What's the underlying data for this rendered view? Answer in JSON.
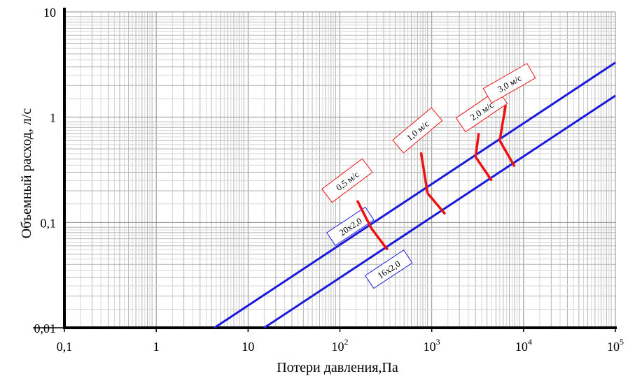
{
  "header": {
    "partial_title": ""
  },
  "chart_data": {
    "type": "line",
    "title": "",
    "xlabel": "Потери давления,Па",
    "ylabel": "Объемный расход, л/с",
    "xscale": "log",
    "yscale": "log",
    "xlim": [
      0.1,
      100000
    ],
    "ylim": [
      0.01,
      10
    ],
    "grid": true,
    "x_ticks": [
      {
        "value": 0.1,
        "label": "0,1"
      },
      {
        "value": 1,
        "label": "1"
      },
      {
        "value": 10,
        "label": "10"
      },
      {
        "value": 100,
        "base": "10",
        "exp": "2"
      },
      {
        "value": 1000,
        "base": "10",
        "exp": "3"
      },
      {
        "value": 10000,
        "base": "10",
        "exp": "4"
      },
      {
        "value": 100000,
        "base": "10",
        "exp": "5"
      }
    ],
    "y_ticks": [
      {
        "value": 0.01,
        "label": "0,01"
      },
      {
        "value": 0.1,
        "label": "0,1"
      },
      {
        "value": 1,
        "label": "1"
      },
      {
        "value": 10,
        "label": "10"
      }
    ],
    "series": [
      {
        "name": "20x2,0",
        "color": "#1a1adc",
        "points": [
          [
            4.3,
            0.01
          ],
          [
            100000,
            3.3
          ]
        ],
        "label_at": [
          130,
          0.092
        ]
      },
      {
        "name": "16x2,0",
        "color": "#1a1adc",
        "points": [
          [
            15,
            0.01
          ],
          [
            100000,
            1.6
          ]
        ],
        "label_at": [
          340,
          0.036
        ]
      }
    ],
    "velocity_markers": [
      {
        "label": "0,5 м/с",
        "color": "#ee1111",
        "from": [
          220,
          0.088
        ],
        "to": [
          330,
          0.055
        ],
        "box_at": [
          120,
          0.25
        ]
      },
      {
        "label": "1,0 м/с",
        "color": "#ee1111",
        "from": [
          900,
          0.19
        ],
        "to": [
          1400,
          0.12
        ],
        "box_at": [
          700,
          0.75
        ]
      },
      {
        "label": "2,0 м/с",
        "color": "#ee1111",
        "from": [
          3000,
          0.42
        ],
        "to": [
          4500,
          0.25
        ],
        "box_at": [
          3500,
          1.15
        ]
      },
      {
        "label": "3,0 м/с",
        "color": "#ee1111",
        "from": [
          5500,
          0.6
        ],
        "to": [
          8000,
          0.34
        ],
        "box_at": [
          7000,
          2.1
        ]
      }
    ]
  }
}
